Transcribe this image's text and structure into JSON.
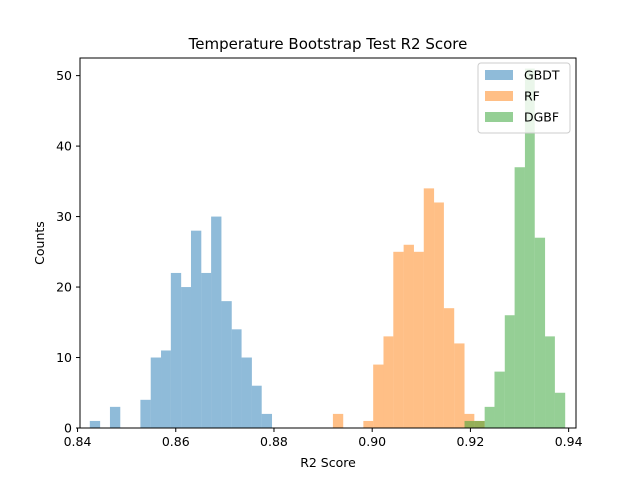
{
  "chart_data": {
    "type": "bar",
    "title": "Temperature Bootstrap Test R2 Score",
    "xlabel": "R2 Score",
    "ylabel": "Counts",
    "xlim": [
      0.8405,
      0.9415
    ],
    "ylim": [
      0,
      52.5
    ],
    "xticks": [
      0.84,
      0.86,
      0.88,
      0.9,
      0.92,
      0.94
    ],
    "xtick_labels": [
      "0.84",
      "0.86",
      "0.88",
      "0.90",
      "0.92",
      "0.94"
    ],
    "yticks": [
      0,
      10,
      20,
      30,
      40,
      50
    ],
    "ytick_labels": [
      "0",
      "10",
      "20",
      "30",
      "40",
      "50"
    ],
    "grid": false,
    "legend_position": "top-right",
    "series": [
      {
        "name": "GBDT",
        "color": "#1f77b4",
        "bins": [
          {
            "x0": 0.8425,
            "x1": 0.8446,
            "count": 1
          },
          {
            "x0": 0.8466,
            "x1": 0.8487,
            "count": 3
          },
          {
            "x0": 0.8528,
            "x1": 0.8549,
            "count": 4
          },
          {
            "x0": 0.8549,
            "x1": 0.857,
            "count": 10
          },
          {
            "x0": 0.857,
            "x1": 0.859,
            "count": 11
          },
          {
            "x0": 0.859,
            "x1": 0.8611,
            "count": 22
          },
          {
            "x0": 0.8611,
            "x1": 0.8631,
            "count": 20
          },
          {
            "x0": 0.8631,
            "x1": 0.8652,
            "count": 28
          },
          {
            "x0": 0.8652,
            "x1": 0.8672,
            "count": 22
          },
          {
            "x0": 0.8672,
            "x1": 0.8693,
            "count": 30
          },
          {
            "x0": 0.8693,
            "x1": 0.8714,
            "count": 18
          },
          {
            "x0": 0.8714,
            "x1": 0.8734,
            "count": 14
          },
          {
            "x0": 0.8734,
            "x1": 0.8755,
            "count": 10
          },
          {
            "x0": 0.8755,
            "x1": 0.8775,
            "count": 6
          },
          {
            "x0": 0.8775,
            "x1": 0.8796,
            "count": 2
          }
        ]
      },
      {
        "name": "RF",
        "color": "#ff7f0e",
        "bins": [
          {
            "x0": 0.892,
            "x1": 0.8941,
            "count": 2
          },
          {
            "x0": 0.8982,
            "x1": 0.9002,
            "count": 1
          },
          {
            "x0": 0.9002,
            "x1": 0.9023,
            "count": 9
          },
          {
            "x0": 0.9023,
            "x1": 0.9043,
            "count": 13
          },
          {
            "x0": 0.9043,
            "x1": 0.9064,
            "count": 25
          },
          {
            "x0": 0.9064,
            "x1": 0.9085,
            "count": 26
          },
          {
            "x0": 0.9085,
            "x1": 0.9105,
            "count": 25
          },
          {
            "x0": 0.9105,
            "x1": 0.9126,
            "count": 34
          },
          {
            "x0": 0.9126,
            "x1": 0.9146,
            "count": 32
          },
          {
            "x0": 0.9146,
            "x1": 0.9167,
            "count": 17
          },
          {
            "x0": 0.9167,
            "x1": 0.9188,
            "count": 12
          },
          {
            "x0": 0.9188,
            "x1": 0.9208,
            "count": 2
          },
          {
            "x0": 0.9208,
            "x1": 0.9229,
            "count": 1
          }
        ]
      },
      {
        "name": "DGBF",
        "color": "#2ca02c",
        "bins": [
          {
            "x0": 0.9188,
            "x1": 0.9208,
            "count": 1
          },
          {
            "x0": 0.9208,
            "x1": 0.9229,
            "count": 1
          },
          {
            "x0": 0.9229,
            "x1": 0.9249,
            "count": 3
          },
          {
            "x0": 0.9249,
            "x1": 0.927,
            "count": 8
          },
          {
            "x0": 0.927,
            "x1": 0.929,
            "count": 16
          },
          {
            "x0": 0.929,
            "x1": 0.9311,
            "count": 37
          },
          {
            "x0": 0.9311,
            "x1": 0.9331,
            "count": 51
          },
          {
            "x0": 0.9331,
            "x1": 0.9352,
            "count": 27
          },
          {
            "x0": 0.9352,
            "x1": 0.9372,
            "count": 13
          },
          {
            "x0": 0.9372,
            "x1": 0.9393,
            "count": 5
          }
        ]
      }
    ]
  }
}
